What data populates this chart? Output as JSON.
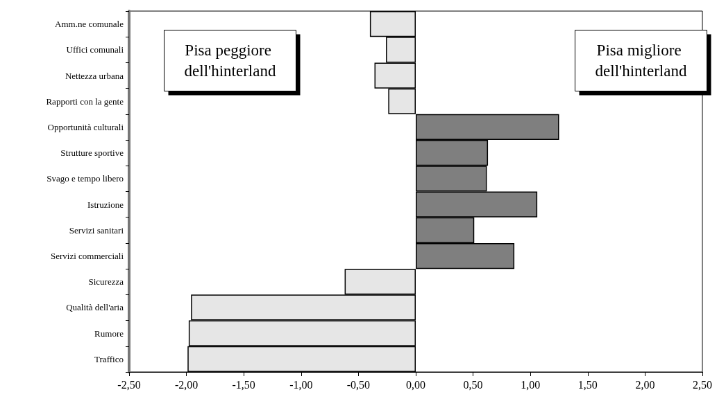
{
  "chart_data": {
    "type": "bar",
    "orientation": "horizontal",
    "categories": [
      "Amm.ne comunale",
      "Uffici comunali",
      "Nettezza urbana",
      "Rapporti con la gente",
      "Opportunità culturali",
      "Strutture sportive",
      "Svago e tempo libero",
      "Istruzione",
      "Servizi sanitari",
      "Servizi commerciali",
      "Sicurezza",
      "Qualità dell'aria",
      "Rumore",
      "Traffico"
    ],
    "values": [
      -0.4,
      -0.26,
      -0.36,
      -0.24,
      1.25,
      0.63,
      0.62,
      1.06,
      0.51,
      0.86,
      -0.62,
      -1.96,
      -1.98,
      -1.99
    ],
    "colors": [
      "#e6e6e6",
      "#e6e6e6",
      "#e6e6e6",
      "#e6e6e6",
      "#7f7f7f",
      "#7f7f7f",
      "#7f7f7f",
      "#7f7f7f",
      "#7f7f7f",
      "#7f7f7f",
      "#e6e6e6",
      "#e6e6e6",
      "#e6e6e6",
      "#e6e6e6"
    ],
    "xlim": [
      -2.5,
      2.5
    ],
    "xticks": [
      {
        "value": -2.5,
        "label": "-2,50"
      },
      {
        "value": -2,
        "label": "-2,00"
      },
      {
        "value": -1.5,
        "label": "-1,50"
      },
      {
        "value": -1,
        "label": "-1,00"
      },
      {
        "value": -0.5,
        "label": "-0,50"
      },
      {
        "value": 0,
        "label": "0,00"
      },
      {
        "value": 0.5,
        "label": "0,50"
      },
      {
        "value": 1,
        "label": "1,00"
      },
      {
        "value": 1.5,
        "label": "1,50"
      },
      {
        "value": 2,
        "label": "2,00"
      },
      {
        "value": 2.5,
        "label": "2,50"
      }
    ],
    "annotations": [
      "Pisa peggiore dell'hinterland",
      "Pisa migliore dell'hinterland"
    ],
    "grid": false
  }
}
